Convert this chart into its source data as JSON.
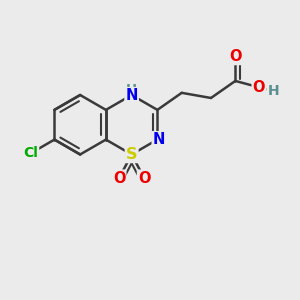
{
  "bg_color": "#ebebeb",
  "bond_color": "#3a3a3a",
  "bond_width": 1.8,
  "atom_colors": {
    "N": "#0000ee",
    "S": "#cccc00",
    "O": "#ee0000",
    "Cl": "#00aa00",
    "H": "#5a9090"
  },
  "figsize": [
    3.0,
    3.0
  ],
  "dpi": 100
}
